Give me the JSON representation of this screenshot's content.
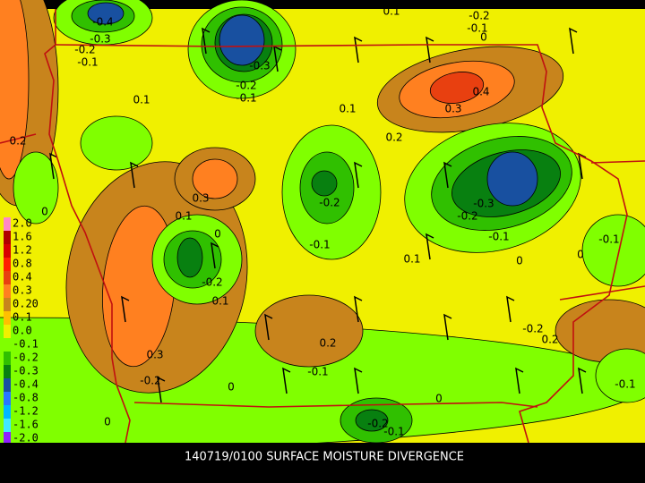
{
  "title": "140719/0100 SURFACE MOISTURE DIVERGENCE",
  "color_bar": [
    {
      "label": "2.0",
      "color": "#ff88c8"
    },
    {
      "label": "1.6",
      "color": "#b00000"
    },
    {
      "label": "1.2",
      "color": "#d80000"
    },
    {
      "label": "0.8",
      "color": "#ff2000"
    },
    {
      "label": "0.4",
      "color": "#e84010"
    },
    {
      "label": "0.3",
      "color": "#ff8020"
    },
    {
      "label": "0.20",
      "color": "#c8841c"
    },
    {
      "label": "0.1",
      "color": "#ffc000"
    },
    {
      "label": "0.0",
      "color": "#f0f000"
    },
    {
      "label": "-0.1",
      "color": "#80ff00"
    },
    {
      "label": "-0.2",
      "color": "#30c000"
    },
    {
      "label": "-0.3",
      "color": "#088010"
    },
    {
      "label": "-0.4",
      "color": "#1850a0"
    },
    {
      "label": "-0.8",
      "color": "#2878ff"
    },
    {
      "label": "-1.2",
      "color": "#00b8ff"
    },
    {
      "label": "-1.6",
      "color": "#40e8ff"
    },
    {
      "label": "-2.0",
      "color": "#9020ff"
    }
  ],
  "contour_labels": [
    "-0.4",
    "0.1",
    "-0.2",
    "-0.1",
    "0",
    "-0.3",
    "-0.2",
    "-0.1",
    "-0.3",
    "-0.2",
    "-0.1",
    "0.1",
    "0.1",
    "0.4",
    "0.3",
    "0.2",
    "0.2",
    "0.3",
    "-0.2",
    "-0.3",
    "-0.2",
    "0.1",
    "0",
    "0",
    "-0.1",
    "-0.1",
    "-0.1",
    "0.1",
    "0",
    "0",
    "-0.2",
    "0.1",
    "-0.2",
    "0.2",
    "0.2",
    "0.3",
    "-0.1",
    "-0.2",
    "0",
    "-0.1",
    "0",
    "0",
    "-0.2",
    "-0.1"
  ]
}
